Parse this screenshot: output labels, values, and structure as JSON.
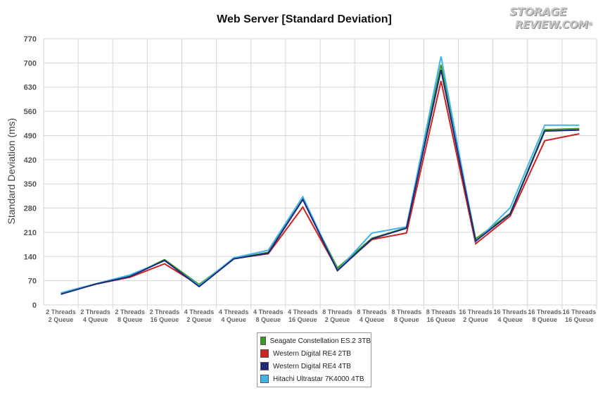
{
  "header": {
    "title": "Web Server [Standard Deviation]"
  },
  "logo": {
    "line1": "STORAGE",
    "line2": "REVIEW",
    "suffix": ".COM",
    "reg": "®"
  },
  "chart_data": {
    "type": "line",
    "title": "Web Server [Standard Deviation]",
    "xlabel": "",
    "ylabel": "Standard Deviation (ms)",
    "ylim": [
      0,
      770
    ],
    "yticks": [
      0,
      70,
      140,
      210,
      280,
      350,
      420,
      490,
      560,
      630,
      700,
      770
    ],
    "grid": true,
    "legend_position": "bottom",
    "categories": [
      [
        "2 Threads",
        "2 Queue"
      ],
      [
        "2 Threads",
        "4 Queue"
      ],
      [
        "2 Threads",
        "8 Queue"
      ],
      [
        "2 Threads",
        "16 Queue"
      ],
      [
        "4 Threads",
        "2 Queue"
      ],
      [
        "4 Threads",
        "4 Queue"
      ],
      [
        "4 Threads",
        "8 Queue"
      ],
      [
        "4 Threads",
        "16 Queue"
      ],
      [
        "8 Threads",
        "2 Queue"
      ],
      [
        "8 Threads",
        "4 Queue"
      ],
      [
        "8 Threads",
        "8 Queue"
      ],
      [
        "8 Threads",
        "16 Queue"
      ],
      [
        "16 Threads",
        "2 Queue"
      ],
      [
        "16 Threads",
        "4 Queue"
      ],
      [
        "16 Threads",
        "8 Queue"
      ],
      [
        "16 Threads",
        "16 Queue"
      ]
    ],
    "series": [
      {
        "name": "Seagate Constellation ES.2 3TB",
        "color": "#3a9a1c",
        "values": [
          33,
          60,
          83,
          131,
          59,
          134,
          152,
          305,
          107,
          193,
          223,
          695,
          191,
          265,
          507,
          510
        ]
      },
      {
        "name": "Western Digital RE4 2TB",
        "color": "#cc2222",
        "values": [
          33,
          60,
          80,
          119,
          57,
          134,
          148,
          283,
          102,
          189,
          208,
          648,
          177,
          257,
          475,
          495
        ]
      },
      {
        "name": "Western Digital RE4 4TB",
        "color": "#1a2a78",
        "values": [
          31,
          60,
          82,
          129,
          53,
          133,
          150,
          305,
          99,
          191,
          222,
          680,
          185,
          263,
          503,
          506
        ]
      },
      {
        "name": "Hitachi Ultrastar 7K4000 4TB",
        "color": "#44b4e8",
        "values": [
          35,
          61,
          87,
          128,
          56,
          136,
          158,
          313,
          100,
          208,
          226,
          719,
          183,
          281,
          520,
          520
        ]
      }
    ]
  }
}
